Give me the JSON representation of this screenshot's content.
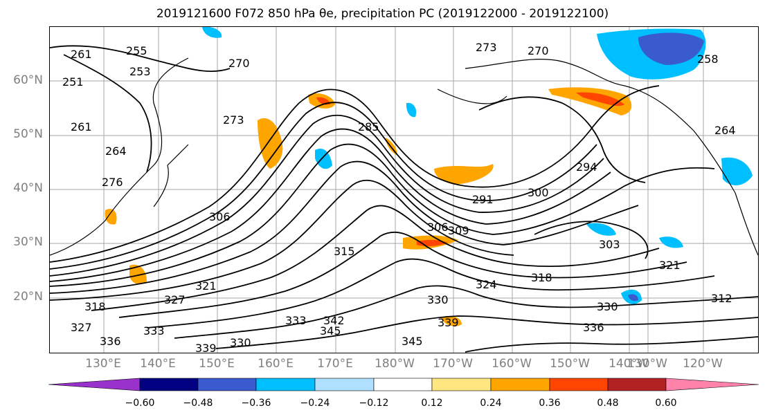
{
  "title": "2019121600 F072 850 hPa θe, precipitation PC (2019122000 - 2019122100)",
  "map": {
    "lat_labels": [
      "60°N",
      "50°N",
      "40°N",
      "30°N",
      "20°N"
    ],
    "lon_labels": [
      "130°E",
      "140°E",
      "150°E",
      "160°E",
      "170°E",
      "180°W",
      "170°W",
      "160°W",
      "150°W",
      "140°W",
      "130°W",
      "120°W"
    ],
    "contour_labels": [
      "261",
      "255",
      "253",
      "251",
      "270",
      "270",
      "273",
      "261",
      "264",
      "273",
      "276",
      "285",
      "258",
      "264",
      "294",
      "291",
      "300",
      "306",
      "306",
      "303",
      "309",
      "315",
      "318",
      "321",
      "324",
      "327",
      "330",
      "318",
      "333",
      "336",
      "330",
      "342",
      "345",
      "339",
      "345",
      "339",
      "336",
      "321",
      "312",
      "333",
      "327",
      "330",
      "336"
    ],
    "colors": {
      "contour": "#000000",
      "grid": "#7f7f7f",
      "coast": "#000000"
    }
  },
  "colorbar": {
    "colors": [
      "#9932cc",
      "#000080",
      "#3a5bcd",
      "#00bfff",
      "#b0e0ff",
      "#ffffff",
      "#ffe680",
      "#ffa500",
      "#ff4500",
      "#b22222",
      "#ff82ab"
    ],
    "tick_labels": [
      "−0.60",
      "−0.48",
      "−0.36",
      "−0.24",
      "−0.12",
      "0.12",
      "0.24",
      "0.36",
      "0.48",
      "0.60"
    ],
    "extend": "both"
  }
}
